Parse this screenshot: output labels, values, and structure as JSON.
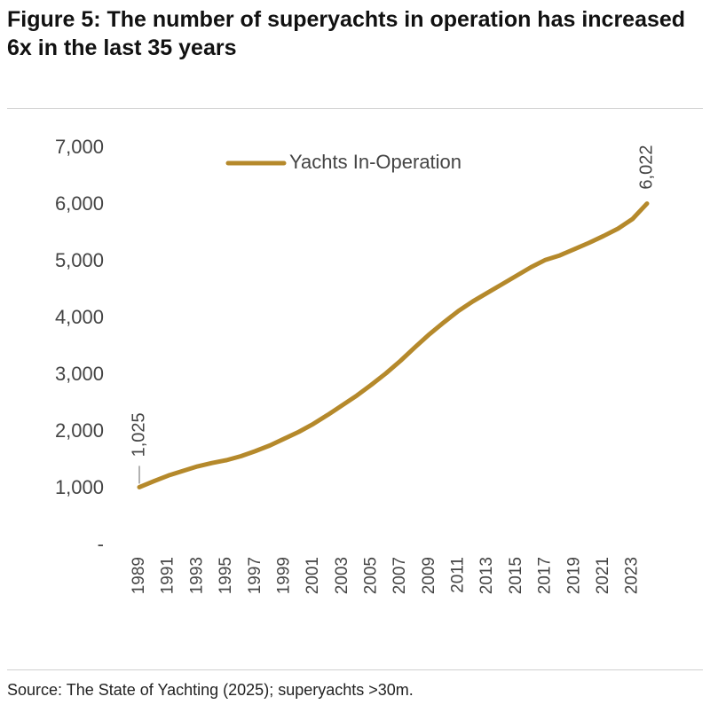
{
  "chart_data": {
    "type": "line",
    "title": "Figure 5: The number of superyachts in operation has increased 6x in the last 35 years",
    "source": "Source: The State of Yachting (2025); superyachts >30m.",
    "x": [
      1989,
      1990,
      1991,
      1992,
      1993,
      1994,
      1995,
      1996,
      1997,
      1998,
      1999,
      2000,
      2001,
      2002,
      2003,
      2004,
      2005,
      2006,
      2007,
      2008,
      2009,
      2010,
      2011,
      2012,
      2013,
      2014,
      2015,
      2016,
      2017,
      2018,
      2019,
      2020,
      2021,
      2022,
      2023,
      2024
    ],
    "series": [
      {
        "name": "Yachts In-Operation",
        "color": "#b5892b",
        "values": [
          1025,
          1130,
          1230,
          1310,
          1390,
          1450,
          1500,
          1570,
          1660,
          1760,
          1880,
          2000,
          2140,
          2300,
          2470,
          2640,
          2830,
          3030,
          3250,
          3490,
          3720,
          3930,
          4130,
          4300,
          4450,
          4600,
          4750,
          4900,
          5030,
          5110,
          5220,
          5330,
          5450,
          5580,
          5750,
          6022
        ],
        "value_labels": [
          "1,025",
          null,
          null,
          null,
          null,
          null,
          null,
          null,
          null,
          null,
          null,
          null,
          null,
          null,
          null,
          null,
          null,
          null,
          null,
          null,
          null,
          null,
          null,
          null,
          null,
          null,
          null,
          null,
          null,
          null,
          null,
          null,
          null,
          null,
          null,
          "6,022"
        ]
      }
    ],
    "xlim": [
      1989,
      2024
    ],
    "xticks": [
      1989,
      1991,
      1993,
      1995,
      1997,
      1999,
      2001,
      2003,
      2005,
      2007,
      2009,
      2011,
      2013,
      2015,
      2017,
      2019,
      2021,
      2023
    ],
    "ylim": [
      0,
      7000
    ],
    "yticks": [
      {
        "value": 0,
        "label": "-"
      },
      {
        "value": 1000,
        "label": "1,000"
      },
      {
        "value": 2000,
        "label": "2,000"
      },
      {
        "value": 3000,
        "label": "3,000"
      },
      {
        "value": 4000,
        "label": "4,000"
      },
      {
        "value": 5000,
        "label": "5,000"
      },
      {
        "value": 6000,
        "label": "6,000"
      },
      {
        "value": 7000,
        "label": "7,000"
      }
    ],
    "legend": "top"
  }
}
